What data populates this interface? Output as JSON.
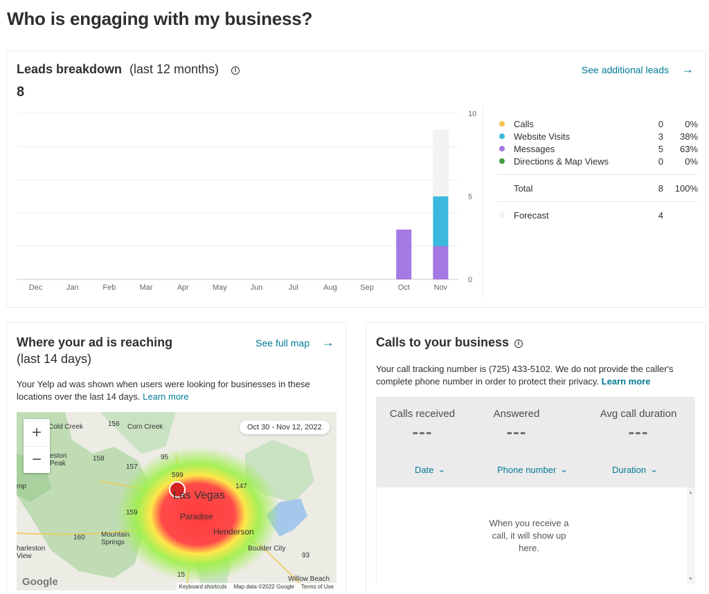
{
  "page": {
    "title": "Who is engaging with my business?"
  },
  "leads": {
    "title": "Leads breakdown",
    "subtitle": "(last 12 months)",
    "info_icon": "info-icon",
    "link_label": "See additional leads",
    "total": "8",
    "legend": [
      {
        "label": "Calls",
        "count": "0",
        "pct": "0%",
        "color": "#f5c24e"
      },
      {
        "label": "Website Visits",
        "count": "3",
        "pct": "38%",
        "color": "#3ab8de"
      },
      {
        "label": "Messages",
        "count": "5",
        "pct": "63%",
        "color": "#a479e2"
      },
      {
        "label": "Directions & Map Views",
        "count": "0",
        "pct": "0%",
        "color": "#419b3b"
      }
    ],
    "total_row": {
      "label": "Total",
      "count": "8",
      "pct": "100%"
    },
    "forecast_row": {
      "label": "Forecast",
      "count": "4"
    }
  },
  "chart_data": {
    "type": "bar",
    "stacked": true,
    "categories": [
      "Dec",
      "Jan",
      "Feb",
      "Mar",
      "Apr",
      "May",
      "Jun",
      "Jul",
      "Aug",
      "Sep",
      "Oct",
      "Nov"
    ],
    "series": [
      {
        "name": "Calls",
        "color": "#f5c24e",
        "values": [
          0,
          0,
          0,
          0,
          0,
          0,
          0,
          0,
          0,
          0,
          0,
          0
        ]
      },
      {
        "name": "Website Visits",
        "color": "#3ab8de",
        "values": [
          0,
          0,
          0,
          0,
          0,
          0,
          0,
          0,
          0,
          0,
          0,
          3
        ]
      },
      {
        "name": "Messages",
        "color": "#a479e2",
        "values": [
          0,
          0,
          0,
          0,
          0,
          0,
          0,
          0,
          0,
          0,
          3,
          2
        ]
      },
      {
        "name": "Directions & Map Views",
        "color": "#419b3b",
        "values": [
          0,
          0,
          0,
          0,
          0,
          0,
          0,
          0,
          0,
          0,
          0,
          0
        ]
      },
      {
        "name": "Forecast",
        "color": "#efefef",
        "values": [
          0,
          0,
          0,
          0,
          0,
          0,
          0,
          0,
          0,
          0,
          0,
          4
        ]
      }
    ],
    "yticks": [
      0,
      5,
      10
    ],
    "ylim": [
      0,
      10
    ],
    "grid": true
  },
  "reach": {
    "title": "Where your ad is reaching",
    "subtitle": "(last 14 days)",
    "link_label": "See full map",
    "desc": "Your Yelp ad was shown when users were looking for businesses in these locations over the last 14 days.",
    "learn_more": "Learn more",
    "date_range": "Oct 30 - Nov 12, 2022",
    "zoom_in": "+",
    "zoom_out": "−",
    "map_labels": {
      "cold_creek": "Cold Creek",
      "corn_creek": "Corn Creek",
      "mount_charleston_peak": "eston Peak",
      "las_vegas": "Las Vegas",
      "paradise": "Paradise",
      "henderson": "Henderson",
      "mountain_springs": "Mountain Springs",
      "charleston_view": "harleston View",
      "boulder_city": "Boulder City",
      "willow_beach": "Willow Beach",
      "mp": "mp",
      "r156": "156",
      "r158": "158",
      "r157": "157",
      "r95": "95",
      "r599": "599",
      "r147": "147",
      "r159": "159",
      "r160": "160",
      "r93": "93",
      "r15": "15"
    },
    "attribution": {
      "keyboard": "Keyboard shortcuts",
      "data": "Map data ©2022 Google",
      "terms": "Terms of Use",
      "logo": "Google"
    }
  },
  "calls": {
    "title": "Calls to your business",
    "desc": "Your call tracking number is (725) 433-5102. We do not provide the caller's complete phone number in order to protect their privacy.",
    "learn_more": "Learn more",
    "stats": [
      {
        "label": "Calls received",
        "value": "---"
      },
      {
        "label": "Answered",
        "value": "---"
      },
      {
        "label": "Avg call duration",
        "value": "---"
      }
    ],
    "sort": [
      {
        "label": "Date"
      },
      {
        "label": "Phone number"
      },
      {
        "label": "Duration"
      }
    ],
    "empty_message": "When you receive a call, it will show up here."
  }
}
